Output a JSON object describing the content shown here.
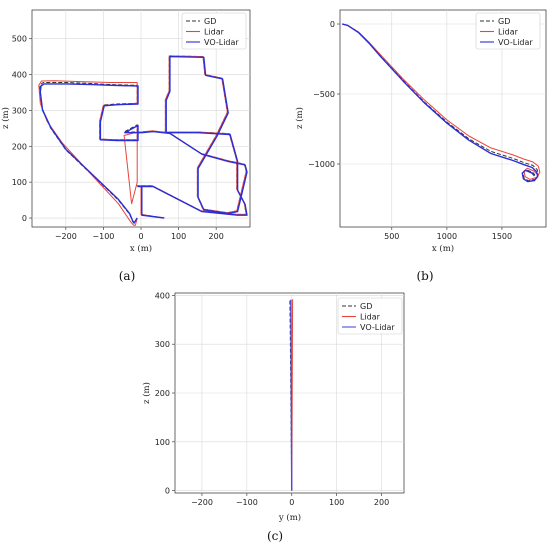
{
  "chart_data": [
    {
      "panel_label": "(a)",
      "type": "line",
      "xlabel": "x (m)",
      "ylabel": "z (m)",
      "xlim": [
        -290,
        290
      ],
      "ylim": [
        -25,
        580
      ],
      "xticks": [
        -200,
        -100,
        0,
        100,
        200
      ],
      "yticks": [
        0,
        100,
        200,
        300,
        400,
        500
      ],
      "grid": true,
      "legend_position": "top-right",
      "series": [
        {
          "name": "GD",
          "style": "dashed",
          "color": "#333333",
          "x": [
            -10,
            -15,
            -18,
            -22,
            -30,
            -60,
            -120,
            -200,
            -240,
            -262,
            -270,
            -268,
            -260,
            -200,
            -130,
            -80,
            -10,
            -10,
            -65,
            -100,
            -110,
            -110,
            -65,
            -10,
            -10,
            -45,
            -10,
            0,
            30,
            75,
            160,
            230,
            275,
            280,
            255,
            230,
            165,
            150,
            150,
            200,
            230,
            215,
            170,
            165,
            75,
            75,
            65,
            65,
            150,
            235,
            255,
            255,
            275,
            280,
            255,
            160,
            30,
            -10,
            0,
            0,
            0,
            60,
            60
          ],
          "y": [
            0,
            -10,
            -15,
            -10,
            10,
            50,
            110,
            190,
            250,
            300,
            350,
            372,
            378,
            378,
            375,
            372,
            370,
            320,
            318,
            315,
            270,
            220,
            218,
            218,
            260,
            240,
            240,
            240,
            243,
            238,
            180,
            160,
            150,
            130,
            20,
            15,
            25,
            60,
            140,
            230,
            295,
            390,
            400,
            450,
            452,
            355,
            330,
            240,
            240,
            235,
            160,
            80,
            40,
            10,
            10,
            20,
            90,
            90,
            90,
            40,
            10,
            0,
            0
          ]
        },
        {
          "name": "Lidar",
          "style": "solid",
          "color": "#e8443a",
          "x": [
            -10,
            -15,
            -20,
            -28,
            -60,
            -140,
            -210,
            -250,
            -268,
            -272,
            -265,
            -230,
            -150,
            -80,
            -10,
            -10,
            -65,
            -100,
            -110,
            -110,
            -65,
            -10,
            -10,
            -10,
            -25,
            -45,
            -10,
            0,
            30,
            75,
            160,
            230,
            275,
            280,
            255,
            230,
            165,
            150,
            150,
            200,
            230,
            215,
            170,
            165,
            75,
            75,
            65,
            65,
            150,
            235,
            255,
            255,
            275,
            280,
            255,
            160,
            30,
            -10,
            0,
            0,
            0,
            60
          ],
          "y": [
            0,
            -20,
            -20,
            -10,
            40,
            130,
            210,
            270,
            320,
            370,
            382,
            383,
            380,
            378,
            378,
            320,
            316,
            314,
            270,
            220,
            218,
            218,
            260,
            100,
            40,
            230,
            240,
            240,
            243,
            238,
            180,
            160,
            150,
            130,
            20,
            15,
            25,
            60,
            140,
            230,
            295,
            390,
            400,
            450,
            452,
            355,
            330,
            240,
            240,
            235,
            160,
            80,
            40,
            10,
            10,
            20,
            90,
            90,
            90,
            40,
            10,
            0
          ]
        },
        {
          "name": "VO-Lidar",
          "style": "solid",
          "color": "#2a2ed8",
          "x": [
            -10,
            -15,
            -18,
            -22,
            -30,
            -60,
            -120,
            -200,
            -240,
            -262,
            -268,
            -266,
            -258,
            -200,
            -130,
            -80,
            -8,
            -8,
            -63,
            -98,
            -108,
            -108,
            -63,
            -8,
            -8,
            -43,
            -8,
            2,
            32,
            77,
            162,
            232,
            277,
            282,
            257,
            232,
            167,
            152,
            152,
            202,
            232,
            217,
            172,
            167,
            77,
            77,
            67,
            67,
            152,
            237,
            257,
            257,
            277,
            282,
            257,
            162,
            32,
            -8,
            2,
            2,
            2,
            62
          ],
          "y": [
            0,
            -8,
            -13,
            -8,
            12,
            52,
            112,
            192,
            252,
            302,
            352,
            368,
            374,
            374,
            372,
            370,
            368,
            318,
            316,
            313,
            268,
            218,
            216,
            216,
            258,
            238,
            238,
            238,
            241,
            236,
            178,
            158,
            148,
            128,
            18,
            13,
            23,
            58,
            138,
            228,
            293,
            388,
            398,
            448,
            450,
            353,
            328,
            238,
            238,
            233,
            158,
            78,
            38,
            8,
            8,
            18,
            88,
            88,
            88,
            38,
            8,
            0
          ]
        }
      ]
    },
    {
      "panel_label": "(b)",
      "type": "line",
      "xlabel": "x (m)",
      "ylabel": "z (m)",
      "xlim": [
        30,
        1900
      ],
      "ylim": [
        -1450,
        100
      ],
      "xticks": [
        500,
        1000,
        1500
      ],
      "yticks": [
        0,
        -500,
        -1000
      ],
      "grid": true,
      "legend_position": "top-right",
      "series": [
        {
          "name": "GD",
          "style": "dashed",
          "color": "#333333",
          "x": [
            50,
            100,
            200,
            300,
            400,
            600,
            800,
            1000,
            1200,
            1400,
            1600,
            1700,
            1780,
            1820,
            1830,
            1800,
            1740,
            1700,
            1690,
            1720,
            1780,
            1800
          ],
          "y": [
            0,
            -10,
            -60,
            -140,
            -230,
            -400,
            -560,
            -700,
            -820,
            -910,
            -960,
            -990,
            -1010,
            -1040,
            -1080,
            -1110,
            -1120,
            -1100,
            -1060,
            -1040,
            -1060,
            -1080
          ]
        },
        {
          "name": "Lidar",
          "style": "solid",
          "color": "#e8443a",
          "x": [
            50,
            100,
            200,
            300,
            400,
            600,
            800,
            1000,
            1200,
            1400,
            1600,
            1700,
            1780,
            1830,
            1845,
            1815,
            1755,
            1710,
            1700,
            1730,
            1790,
            1815
          ],
          "y": [
            0,
            -10,
            -58,
            -135,
            -222,
            -390,
            -545,
            -685,
            -800,
            -885,
            -935,
            -965,
            -985,
            -1015,
            -1060,
            -1095,
            -1110,
            -1090,
            -1050,
            -1030,
            -1050,
            -1070
          ]
        },
        {
          "name": "VO-Lidar",
          "style": "solid",
          "color": "#2a2ed8",
          "x": [
            50,
            100,
            200,
            300,
            400,
            600,
            800,
            1000,
            1200,
            1400,
            1600,
            1700,
            1775,
            1815,
            1825,
            1795,
            1735,
            1695,
            1685,
            1715,
            1775,
            1795
          ],
          "y": [
            0,
            -10,
            -62,
            -142,
            -234,
            -405,
            -566,
            -708,
            -830,
            -925,
            -975,
            -1005,
            -1025,
            -1055,
            -1090,
            -1118,
            -1126,
            -1106,
            -1066,
            -1046,
            -1066,
            -1086
          ]
        }
      ]
    },
    {
      "panel_label": "(c)",
      "type": "line",
      "xlabel": "y (m)",
      "ylabel": "z (m)",
      "xlim": [
        -260,
        250
      ],
      "ylim": [
        -5,
        405
      ],
      "xticks": [
        -200,
        -100,
        0,
        100,
        200
      ],
      "yticks": [
        0,
        100,
        200,
        300,
        400
      ],
      "grid": true,
      "legend_position": "top-right",
      "series": [
        {
          "name": "GD",
          "style": "dashed",
          "color": "#333333",
          "x": [
            0,
            -1,
            -2,
            -3,
            -4
          ],
          "y": [
            0,
            100,
            200,
            300,
            390
          ]
        },
        {
          "name": "Lidar",
          "style": "solid",
          "color": "#e8443a",
          "x": [
            0,
            0.5,
            1,
            1.5,
            2
          ],
          "y": [
            0,
            100,
            200,
            300,
            392
          ]
        },
        {
          "name": "VO-Lidar",
          "style": "solid",
          "color": "#4a4ee0",
          "x": [
            0,
            -0.5,
            -1,
            -1.5,
            -2
          ],
          "y": [
            0,
            100,
            200,
            300,
            391
          ]
        }
      ]
    }
  ]
}
